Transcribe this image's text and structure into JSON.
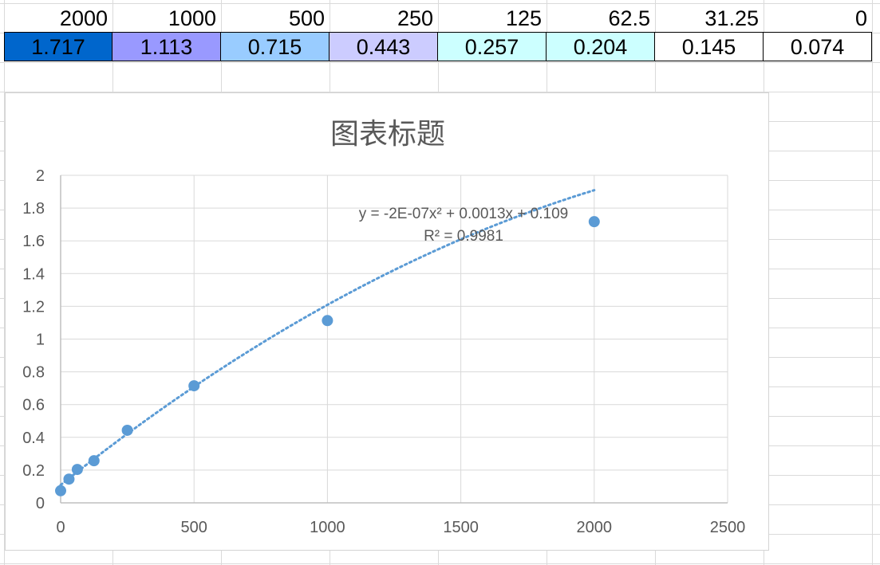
{
  "sheet": {
    "headers": [
      "2000",
      "1000",
      "500",
      "250",
      "125",
      "62.5",
      "31.25",
      "0"
    ],
    "values": [
      "1.717",
      "1.113",
      "0.715",
      "0.443",
      "0.257",
      "0.204",
      "0.145",
      "0.074"
    ],
    "value_fill_colors": [
      "#0066cc",
      "#9999ff",
      "#99ccff",
      "#ccccff",
      "#ccffff",
      "#ccffff",
      "#ffffff",
      "#ffffff"
    ]
  },
  "chart_data": {
    "type": "scatter",
    "title": "图表标题",
    "x": [
      2000,
      1000,
      500,
      250,
      125,
      62.5,
      31.25,
      0
    ],
    "y": [
      1.717,
      1.113,
      0.715,
      0.443,
      0.257,
      0.204,
      0.145,
      0.074
    ],
    "xlim": [
      0,
      2500
    ],
    "ylim": [
      0,
      2
    ],
    "xticks": [
      0,
      500,
      1000,
      1500,
      2000,
      2500
    ],
    "yticks": [
      0,
      0.2,
      0.4,
      0.6,
      0.8,
      1,
      1.2,
      1.4,
      1.6,
      1.8,
      2
    ],
    "grid": true,
    "legend": "none",
    "marker_color": "#5b9bd5",
    "trendline": {
      "type": "polynomial",
      "order": 2,
      "coefficients": [
        -2e-07,
        0.0013,
        0.109
      ],
      "x_range": [
        0,
        2000
      ],
      "style": "dotted",
      "color": "#5b9bd5",
      "equation_label": "y = -2E-07x² + 0.0013x + 0.109",
      "r2_label": "R² = 0.9981"
    }
  }
}
